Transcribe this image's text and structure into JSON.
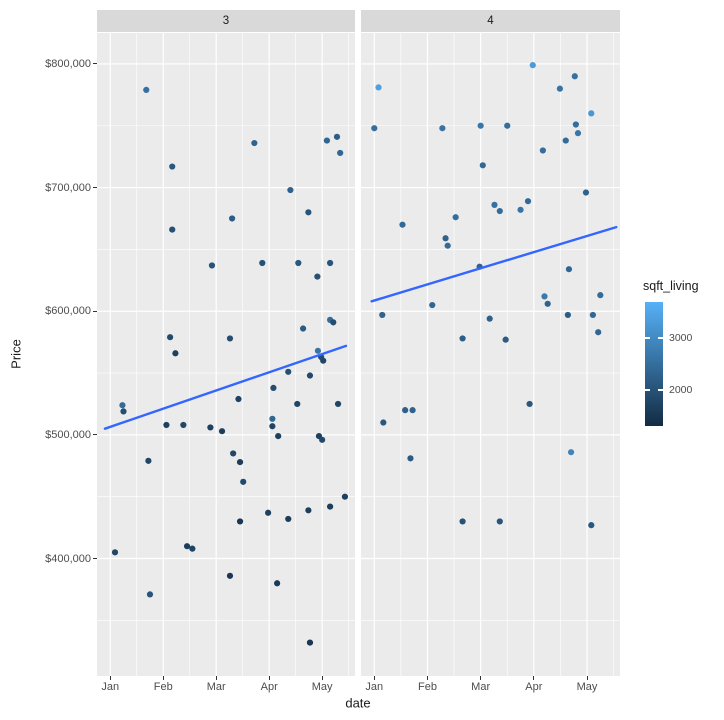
{
  "chart_data": {
    "type": "scatter",
    "title": "",
    "xlabel": "date",
    "ylabel": "Price",
    "facet_labels": [
      "3",
      "4"
    ],
    "x_ticks": [
      {
        "v": 0,
        "label": "Jan"
      },
      {
        "v": 1,
        "label": "Feb"
      },
      {
        "v": 2,
        "label": "Mar"
      },
      {
        "v": 3,
        "label": "Apr"
      },
      {
        "v": 4,
        "label": "May"
      }
    ],
    "x_minor": [
      0.5,
      1.5,
      2.5,
      3.5,
      4.5
    ],
    "y_ticks": [
      {
        "v": 800000,
        "label": "$800,000"
      },
      {
        "v": 700000,
        "label": "$700,000"
      },
      {
        "v": 600000,
        "label": "$600,000"
      },
      {
        "v": 500000,
        "label": "$500,000"
      },
      {
        "v": 400000,
        "label": "$400,000"
      }
    ],
    "y_minor": [
      750000,
      650000,
      550000,
      450000,
      350000
    ],
    "xlim": [
      -0.25,
      4.62
    ],
    "ylim": [
      305000,
      825000
    ],
    "grid": true,
    "legend": {
      "title": "sqft_living",
      "position": "right",
      "domain": [
        1300,
        3700
      ],
      "color_low": "#132B43",
      "color_high": "#56B1F7",
      "ticks": [
        {
          "value": 3000,
          "label": "3000"
        },
        {
          "value": 2000,
          "label": "2000"
        }
      ]
    },
    "colors": {
      "panel_bg": "#EBEBEB",
      "strip_bg": "#D9D9D9",
      "grid": "#FFFFFF",
      "trend": "#3366FF"
    },
    "point_format": [
      "month_index_from_jan",
      "price_usd",
      "sqft_living"
    ],
    "facets": [
      {
        "label": "3",
        "trend": {
          "x1": -0.1,
          "y1": 505000,
          "x2": 4.45,
          "y2": 572000
        },
        "points": [
          [
            0.09,
            405000,
            1800
          ],
          [
            0.23,
            524000,
            2440
          ],
          [
            0.25,
            519000,
            1900
          ],
          [
            0.68,
            779000,
            2540
          ],
          [
            0.72,
            479000,
            1760
          ],
          [
            0.75,
            371000,
            2060
          ],
          [
            1.06,
            508000,
            1700
          ],
          [
            1.13,
            579000,
            1850
          ],
          [
            1.17,
            717000,
            2100
          ],
          [
            1.17,
            666000,
            1950
          ],
          [
            1.23,
            566000,
            1680
          ],
          [
            1.38,
            508000,
            1800
          ],
          [
            1.45,
            410000,
            1600
          ],
          [
            1.55,
            408000,
            1750
          ],
          [
            1.89,
            506000,
            1700
          ],
          [
            1.92,
            637000,
            2050
          ],
          [
            2.11,
            503000,
            1640
          ],
          [
            2.26,
            578000,
            1900
          ],
          [
            2.26,
            386000,
            1540
          ],
          [
            2.3,
            675000,
            2200
          ],
          [
            2.32,
            485000,
            1800
          ],
          [
            2.42,
            529000,
            1720
          ],
          [
            2.45,
            478000,
            1620
          ],
          [
            2.45,
            430000,
            1500
          ],
          [
            2.51,
            462000,
            1850
          ],
          [
            2.72,
            736000,
            2300
          ],
          [
            2.87,
            639000,
            2000
          ],
          [
            2.98,
            437000,
            1700
          ],
          [
            3.06,
            513000,
            2350
          ],
          [
            3.06,
            507000,
            1750
          ],
          [
            3.08,
            538000,
            1900
          ],
          [
            3.15,
            380000,
            1560
          ],
          [
            3.17,
            499000,
            1680
          ],
          [
            3.36,
            551000,
            1950
          ],
          [
            3.4,
            698000,
            2250
          ],
          [
            3.36,
            432000,
            1600
          ],
          [
            3.53,
            525000,
            1780
          ],
          [
            3.55,
            639000,
            2100
          ],
          [
            3.64,
            586000,
            2150
          ],
          [
            3.74,
            680000,
            2050
          ],
          [
            3.74,
            439000,
            1650
          ],
          [
            3.77,
            548000,
            1850
          ],
          [
            3.77,
            332000,
            1500
          ],
          [
            3.91,
            628000,
            1980
          ],
          [
            3.92,
            568000,
            2600
          ],
          [
            3.98,
            563000,
            1900
          ],
          [
            4.02,
            560000,
            1800
          ],
          [
            3.94,
            499000,
            1700
          ],
          [
            4.0,
            496000,
            1820
          ],
          [
            4.09,
            738000,
            2350
          ],
          [
            4.15,
            639000,
            2050
          ],
          [
            4.15,
            593000,
            2480
          ],
          [
            4.21,
            591000,
            1900
          ],
          [
            4.15,
            442000,
            1620
          ],
          [
            4.28,
            741000,
            2200
          ],
          [
            4.34,
            728000,
            2380
          ],
          [
            4.3,
            525000,
            1760
          ],
          [
            4.43,
            450000,
            1700
          ]
        ]
      },
      {
        "label": "4",
        "trend": {
          "x1": -0.05,
          "y1": 608000,
          "x2": 4.55,
          "y2": 668000
        },
        "points": [
          [
            0.08,
            781000,
            3400
          ],
          [
            0.0,
            748000,
            2500
          ],
          [
            0.15,
            597000,
            2300
          ],
          [
            0.17,
            510000,
            2100
          ],
          [
            0.53,
            670000,
            2400
          ],
          [
            0.58,
            520000,
            2250
          ],
          [
            0.72,
            520000,
            2300
          ],
          [
            0.68,
            481000,
            2150
          ],
          [
            1.09,
            605000,
            2350
          ],
          [
            1.28,
            748000,
            2600
          ],
          [
            1.34,
            659000,
            2300
          ],
          [
            1.38,
            653000,
            2450
          ],
          [
            1.53,
            676000,
            2500
          ],
          [
            1.66,
            578000,
            2200
          ],
          [
            1.66,
            430000,
            2000
          ],
          [
            2.0,
            750000,
            2650
          ],
          [
            2.04,
            718000,
            2400
          ],
          [
            1.98,
            636000,
            2300
          ],
          [
            2.17,
            594000,
            2250
          ],
          [
            2.26,
            686000,
            2550
          ],
          [
            2.36,
            681000,
            2450
          ],
          [
            2.47,
            577000,
            2150
          ],
          [
            2.36,
            430000,
            2050
          ],
          [
            2.5,
            750000,
            2500
          ],
          [
            2.75,
            682000,
            2600
          ],
          [
            2.89,
            689000,
            2400
          ],
          [
            2.92,
            525000,
            2100
          ],
          [
            2.98,
            799000,
            3300
          ],
          [
            3.17,
            730000,
            2500
          ],
          [
            3.26,
            606000,
            2300
          ],
          [
            3.2,
            612000,
            2700
          ],
          [
            3.49,
            780000,
            2600
          ],
          [
            3.6,
            738000,
            2450
          ],
          [
            3.66,
            634000,
            2350
          ],
          [
            3.64,
            597000,
            2200
          ],
          [
            3.7,
            486000,
            2900
          ],
          [
            3.77,
            790000,
            2550
          ],
          [
            3.79,
            751000,
            2500
          ],
          [
            3.83,
            744000,
            2650
          ],
          [
            4.08,
            760000,
            3250
          ],
          [
            3.98,
            696000,
            2300
          ],
          [
            4.11,
            597000,
            2400
          ],
          [
            4.21,
            583000,
            2350
          ],
          [
            4.25,
            613000,
            2450
          ],
          [
            4.08,
            427000,
            2100
          ]
        ]
      }
    ]
  }
}
